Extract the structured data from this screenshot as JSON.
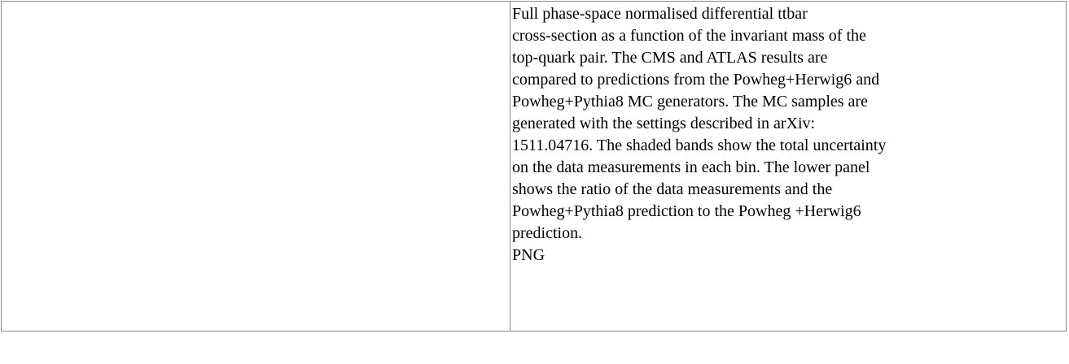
{
  "table": {
    "rows": [
      [
        null,
        {
          "caption_lines": [
            "Full phase-space normalised differential ttbar",
            "cross-section as a function of the invariant mass of the",
            "top-quark pair. The CMS and ATLAS results are",
            "compared to predictions from the Powheg+Herwig6 and",
            "Powheg+Pythia8 MC generators. The MC samples are",
            "generated with the settings described in arXiv:",
            "1511.04716. The shaded bands show the total uncertainty",
            "on the data measurements in each bin. The lower panel",
            "shows the ratio of the data measurements and the",
            "Powheg+Pythia8 prediction to the Powheg +Herwig6",
            "prediction."
          ],
          "format": "PNG"
        }
      ]
    ]
  }
}
